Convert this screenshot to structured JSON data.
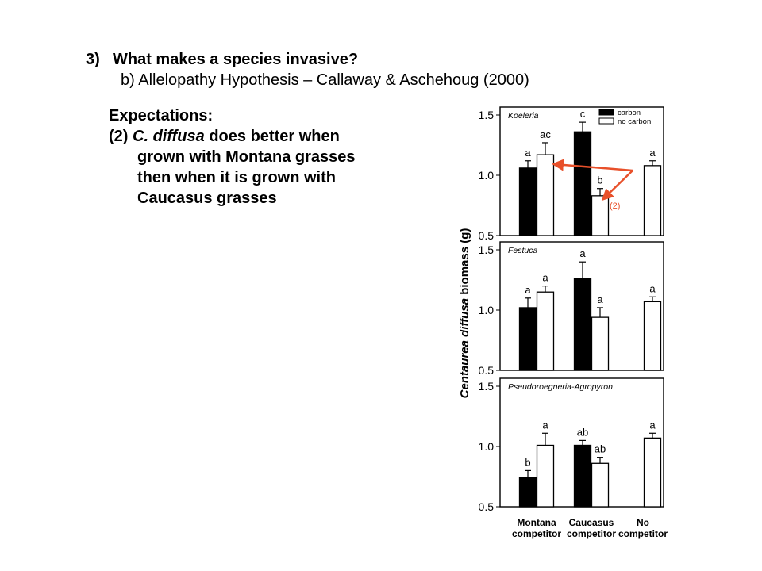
{
  "heading": {
    "number": "3)",
    "title": "What makes a species invasive?",
    "subtitle": "b) Allelopathy Hypothesis – Callaway & Aschehoug (2000)"
  },
  "expectations": {
    "label": "Expectations:",
    "item_number": "(2)",
    "species": "C. diffusa",
    "line1_rest": " does better when",
    "line2": "grown with Montana grasses",
    "line3": "then when it is grown with",
    "line4": "Caucasus grasses"
  },
  "annotation": {
    "label": "(2)",
    "color": "#e8502a"
  },
  "chart_data": {
    "type": "bar",
    "ylabel_italic": "Centaurea diffusa",
    "ylabel_rest": " biomass (g)",
    "ylim": [
      0.5,
      1.5
    ],
    "yticks": [
      "1.5",
      "1.0",
      "0.5"
    ],
    "categories": [
      "Montana\ncompetitor",
      "Caucasus\ncompetitor",
      "No\ncompetitor"
    ],
    "legend": [
      "carbon",
      "no carbon"
    ],
    "panels": [
      {
        "title": "Koeleria",
        "series": [
          {
            "name": "carbon",
            "values": [
              1.06,
              1.36,
              null
            ],
            "errors": [
              0.06,
              0.08,
              null
            ],
            "letters": [
              "a",
              "c",
              ""
            ]
          },
          {
            "name": "no carbon",
            "values": [
              1.17,
              0.83,
              1.08
            ],
            "errors": [
              0.1,
              0.06,
              0.04
            ],
            "letters": [
              "ac",
              "b",
              "a"
            ]
          }
        ]
      },
      {
        "title": "Festuca",
        "series": [
          {
            "name": "carbon",
            "values": [
              1.02,
              1.26,
              null
            ],
            "errors": [
              0.08,
              0.14,
              null
            ],
            "letters": [
              "a",
              "a",
              ""
            ]
          },
          {
            "name": "no carbon",
            "values": [
              1.15,
              0.94,
              1.07
            ],
            "errors": [
              0.05,
              0.08,
              0.04
            ],
            "letters": [
              "a",
              "a",
              "a"
            ]
          }
        ]
      },
      {
        "title": "Pseudoroegneria-Agropyron",
        "series": [
          {
            "name": "carbon",
            "values": [
              0.74,
              1.01,
              null
            ],
            "errors": [
              0.06,
              0.04,
              null
            ],
            "letters": [
              "b",
              "ab",
              ""
            ]
          },
          {
            "name": "no carbon",
            "values": [
              1.01,
              0.86,
              1.07
            ],
            "errors": [
              0.1,
              0.05,
              0.04
            ],
            "letters": [
              "a",
              "ab",
              "a"
            ]
          }
        ]
      }
    ]
  }
}
